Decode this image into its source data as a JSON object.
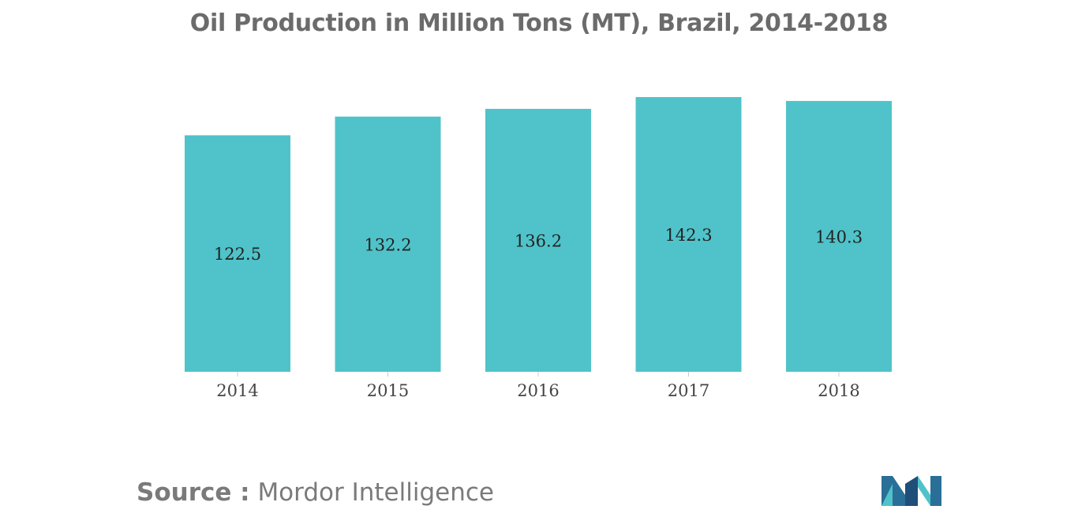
{
  "chart_data": {
    "type": "bar",
    "title": "Oil Production in Million Tons (MT), Brazil, 2014-2018",
    "categories": [
      "2014",
      "2015",
      "2016",
      "2017",
      "2018"
    ],
    "values": [
      122.5,
      132.2,
      136.2,
      142.3,
      140.3
    ],
    "value_labels": [
      "122.5",
      "132.2",
      "136.2",
      "142.3",
      "140.3"
    ],
    "xlabel": "",
    "ylabel": "",
    "ylim": [
      0,
      145
    ],
    "grid": false,
    "legend": "none",
    "bar_color": "#4fc3c9"
  },
  "source": {
    "label": "Source :",
    "value": "Mordor Intelligence"
  },
  "logo": {
    "icon": "mordor-intelligence-logo",
    "colors": [
      "#1f4e79",
      "#4fc3c9"
    ]
  }
}
